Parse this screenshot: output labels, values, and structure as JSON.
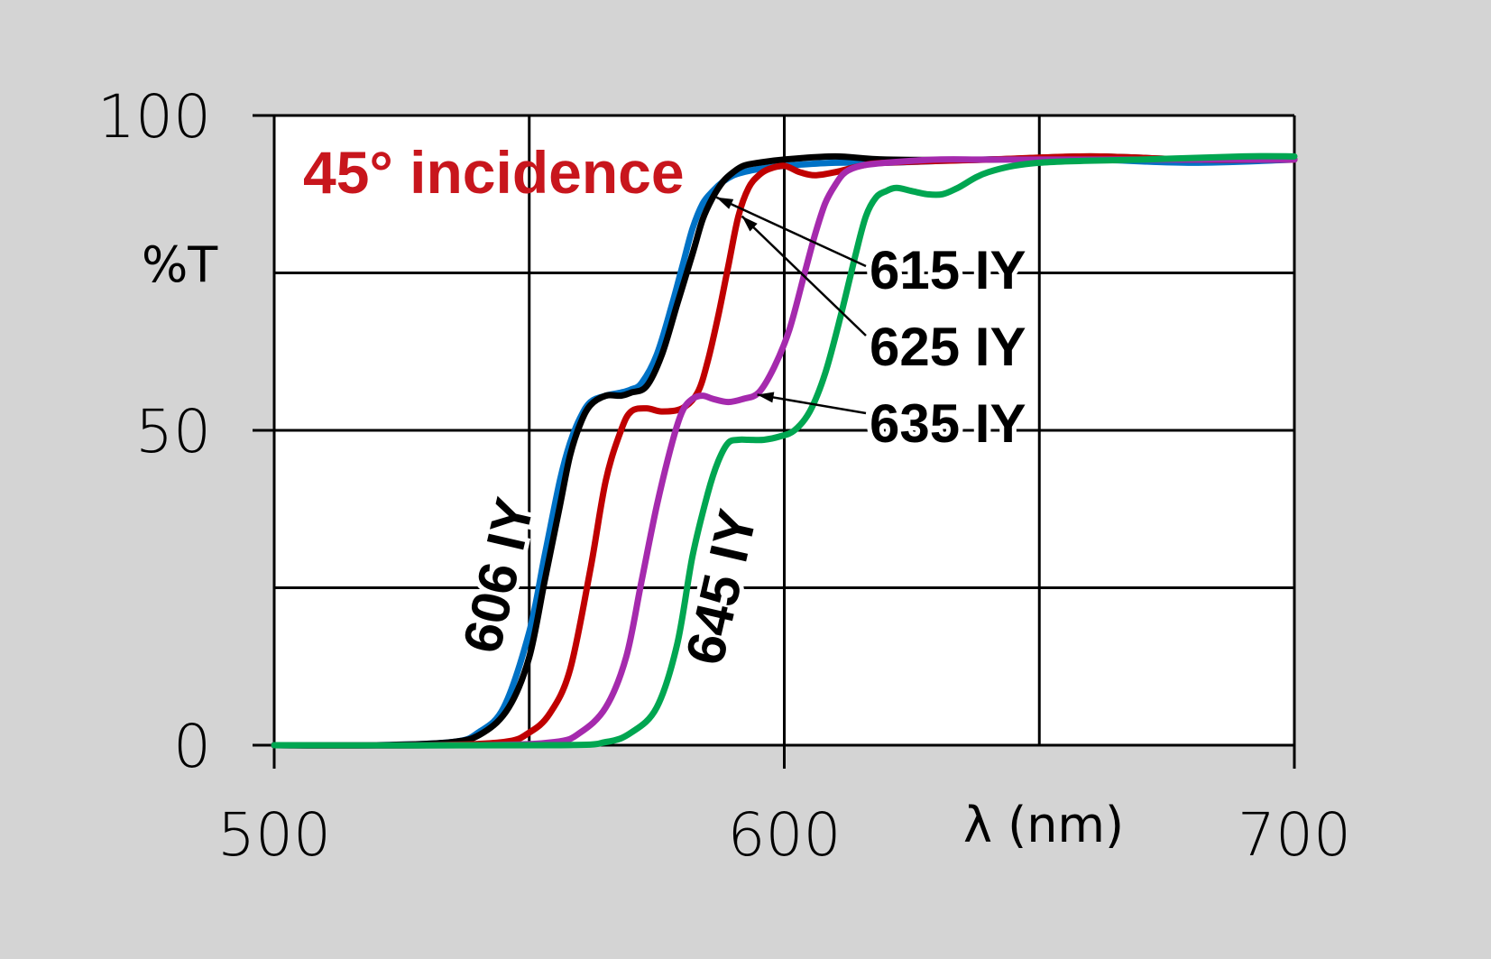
{
  "chart_data": {
    "type": "line",
    "title": "45° incidence",
    "xlabel": "λ (nm)",
    "ylabel": "%T",
    "xlim": [
      500,
      700
    ],
    "ylim": [
      0,
      100
    ],
    "x_ticks": [
      500,
      600,
      700
    ],
    "y_ticks": [
      0,
      50,
      100
    ],
    "grid": true,
    "colors": {
      "title": "#c8161d",
      "gridline": "#000000"
    },
    "series": [
      {
        "name": "606 IY",
        "color": "#0072c6",
        "x": [
          500,
          520,
          535,
          540,
          545,
          550,
          553,
          556,
          558,
          560,
          562,
          565,
          568,
          570,
          572,
          575,
          578,
          580,
          582,
          584,
          586,
          588,
          590,
          592,
          595,
          600,
          610,
          620,
          640,
          660,
          680,
          700
        ],
        "y": [
          0,
          0,
          0.5,
          2,
          6,
          18,
          30,
          42,
          48,
          52,
          54.5,
          55.5,
          56,
          56.5,
          57.5,
          62,
          70,
          76,
          82,
          86,
          88,
          89.5,
          90.5,
          91,
          91.5,
          92,
          92.5,
          92.5,
          93,
          93,
          92.5,
          93
        ]
      },
      {
        "name": "615 IY",
        "color": "#000000",
        "x": [
          500,
          520,
          535,
          541,
          546,
          550,
          553,
          556,
          558,
          560,
          562,
          565,
          568,
          570,
          573,
          576,
          579,
          582,
          584,
          586,
          588,
          590,
          592,
          595,
          600,
          610,
          620,
          640,
          660,
          680,
          700
        ],
        "y": [
          0,
          0,
          0.5,
          2,
          6,
          14,
          26,
          38,
          46,
          51,
          54,
          55.5,
          55.5,
          56,
          57,
          62,
          70,
          78,
          83.5,
          87,
          89.5,
          91,
          92,
          92.5,
          93,
          93.5,
          93,
          93,
          93.5,
          93,
          93
        ]
      },
      {
        "name": "625 IY",
        "color": "#c00000",
        "x": [
          500,
          530,
          545,
          550,
          554,
          558,
          562,
          565,
          568,
          570,
          573,
          576,
          580,
          583,
          585,
          587,
          589,
          591,
          593,
          595,
          597,
          600,
          603,
          606,
          610,
          615,
          620,
          640,
          660,
          680,
          700
        ],
        "y": [
          0,
          0,
          0.5,
          2,
          5,
          12,
          28,
          42,
          50,
          53,
          53.5,
          53,
          53.5,
          56,
          61,
          68,
          76,
          84,
          88.5,
          90.5,
          91.5,
          92,
          91,
          90.5,
          91,
          92,
          92.5,
          93,
          93.5,
          93,
          93
        ]
      },
      {
        "name": "635 IY",
        "color": "#a52aad",
        "x": [
          500,
          540,
          555,
          560,
          565,
          569,
          572,
          575,
          578,
          580,
          582,
          584,
          586,
          589,
          592,
          595,
          598,
          601,
          604,
          606,
          608,
          610,
          612,
          615,
          620,
          630,
          640,
          660,
          680,
          700
        ],
        "y": [
          0,
          0,
          0.5,
          2,
          6,
          14,
          26,
          38,
          48,
          53,
          55,
          55.5,
          55,
          54.5,
          55,
          56,
          60,
          66,
          75,
          81,
          86,
          89,
          91,
          92,
          92.5,
          93,
          93,
          93,
          93,
          93
        ]
      },
      {
        "name": "645 IY",
        "color": "#00a651",
        "x": [
          500,
          555,
          565,
          570,
          575,
          579,
          582,
          585,
          587,
          589,
          591,
          593,
          596,
          599,
          602,
          605,
          608,
          611,
          614,
          616,
          618,
          620,
          622,
          625,
          628,
          631,
          634,
          640,
          650,
          670,
          690,
          700
        ],
        "y": [
          0,
          0,
          0.5,
          2,
          6,
          16,
          30,
          40,
          45,
          48,
          48.5,
          48.5,
          48.5,
          49,
          50,
          53,
          59,
          68,
          78,
          84,
          87,
          88,
          88.5,
          88,
          87.5,
          87.5,
          88.5,
          91,
          92.5,
          93,
          93.5,
          93.5
        ]
      }
    ],
    "annotations": [
      {
        "text": "615 IY",
        "target": "615 IY"
      },
      {
        "text": "625 IY",
        "target": "625 IY"
      },
      {
        "text": "635 IY",
        "target": "635 IY"
      },
      {
        "text": "606 IY",
        "target": "606 IY"
      },
      {
        "text": "645 IY",
        "target": "645 IY"
      }
    ]
  }
}
